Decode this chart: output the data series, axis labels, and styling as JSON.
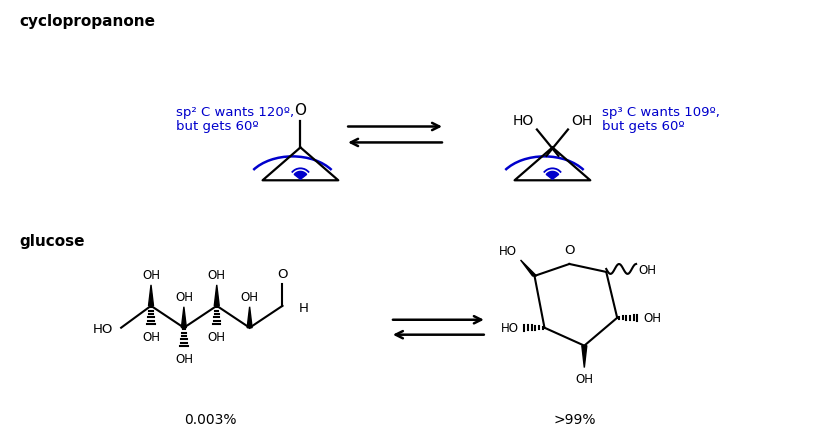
{
  "bg": "#ffffff",
  "black": "#000000",
  "blue": "#0000cc",
  "cyclopropanone_label": "cyclopropanone",
  "glucose_label": "glucose",
  "sp2_line1": "sp² C wants 120º,",
  "sp2_line2": "but gets 60º",
  "sp3_line1": "sp³ C wants 109º,",
  "sp3_line2": "but gets 60º",
  "pct_left": "0.003%",
  "pct_right": ">99%"
}
